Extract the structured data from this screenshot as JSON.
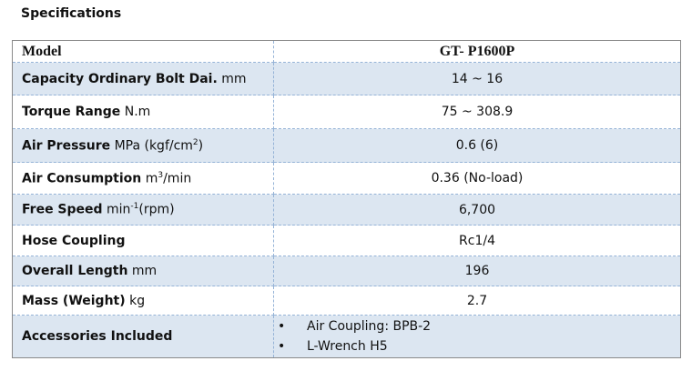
{
  "header": {
    "title": "Specifications"
  },
  "table": {
    "head": {
      "label": "Model",
      "value": "GT- P1600P"
    },
    "rows": [
      {
        "label": "Capacity Ordinary Bolt Dai.",
        "unit": [
          {
            "text": "mm"
          }
        ],
        "value": "14 ~ 16"
      },
      {
        "label": "Torque Range",
        "unit": [
          {
            "text": "N.m"
          }
        ],
        "value": "75 ~ 308.9"
      },
      {
        "label": "Air Pressure",
        "unit": [
          {
            "text": "MPa (kgf/cm"
          },
          {
            "text": "2",
            "sup": true
          },
          {
            "text": ")"
          }
        ],
        "value": "0.6 (6)"
      },
      {
        "label": "Air Consumption",
        "unit": [
          {
            "text": "m"
          },
          {
            "text": "3",
            "sup": true
          },
          {
            "text": "/min"
          }
        ],
        "value": "0.36 (No-load)"
      },
      {
        "label": "Free Speed",
        "unit": [
          {
            "text": "min"
          },
          {
            "text": "-1",
            "sup": true
          },
          {
            "text": "(rpm)"
          }
        ],
        "value": "6,700"
      },
      {
        "label": "Hose Coupling",
        "unit": [],
        "value": "Rc1/4"
      },
      {
        "label": "Overall Length",
        "unit": [
          {
            "text": "mm"
          }
        ],
        "value": "196"
      },
      {
        "label": "Mass (Weight)",
        "unit": [
          {
            "text": "kg"
          }
        ],
        "value": "2.7"
      },
      {
        "label": "Accessories Included",
        "unit": [],
        "items": [
          "Air Coupling: BPB-2",
          "L-Wrench H5"
        ]
      }
    ]
  }
}
